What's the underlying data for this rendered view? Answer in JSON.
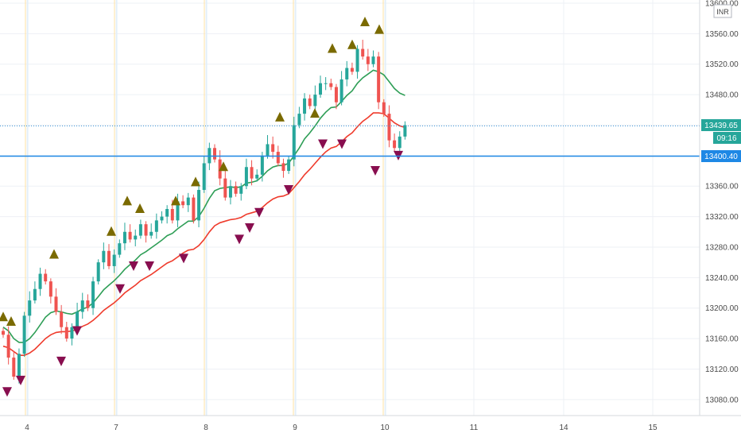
{
  "instrument": {
    "currency": "INR"
  },
  "colors": {
    "up": "#26a69a",
    "down": "#ef5350",
    "ema_fast": "#2e9e56",
    "ema_slow": "#ef3b2c",
    "triangle_up": "#7a6a00",
    "triangle_down": "#880e4f",
    "price_line": "#3c97d9",
    "h_line": "#1e88e5"
  },
  "chart_data": {
    "type": "candlestick",
    "y_axis": {
      "ylim": [
        13060,
        13600
      ],
      "ticks": [
        "13080.00",
        "13120.00",
        "13160.00",
        "13200.00",
        "13240.00",
        "13280.00",
        "13320.00",
        "13360.00",
        "13400.00",
        "13440.00",
        "13480.00",
        "13520.00",
        "13560.00",
        "13600.00"
      ]
    },
    "x_axis": {
      "ticks": [
        "4",
        "7",
        "8",
        "9",
        "10",
        "11",
        "14",
        "15"
      ]
    },
    "price_labels": {
      "last": "13439.65",
      "countdown": "09:16",
      "level": "13400.40"
    },
    "grid": true,
    "series": [
      {
        "kind": "candles",
        "o": [
          13170,
          13165,
          13135,
          13110,
          13140,
          13190,
          13210,
          13225,
          13245,
          13235,
          13215,
          13195,
          13175,
          13160,
          13175,
          13195,
          13210,
          13200,
          13235,
          13260,
          13275,
          13255,
          13270,
          13285,
          13300,
          13290,
          13295,
          13310,
          13295,
          13300,
          13315,
          13320,
          13330,
          13315,
          13340,
          13335,
          13345,
          13315,
          13355,
          13390,
          13410,
          13395,
          13370,
          13345,
          13360,
          13350,
          13360,
          13385,
          13370,
          13375,
          13400,
          13415,
          13405,
          13390,
          13380,
          13395,
          13440,
          13455,
          13475,
          13465,
          13480,
          13495,
          13495,
          13490,
          13470,
          13500,
          13515,
          13510,
          13540,
          13530,
          13520,
          13530,
          13470,
          13455,
          13420,
          13410,
          13425
        ]
      },
      {
        "kind": "candles",
        "c": [
          13165,
          13135,
          13110,
          13140,
          13190,
          13210,
          13225,
          13245,
          13235,
          13215,
          13195,
          13175,
          13160,
          13175,
          13195,
          13210,
          13200,
          13235,
          13260,
          13275,
          13255,
          13270,
          13285,
          13300,
          13290,
          13295,
          13310,
          13295,
          13300,
          13315,
          13320,
          13330,
          13315,
          13340,
          13335,
          13345,
          13315,
          13355,
          13390,
          13410,
          13395,
          13370,
          13345,
          13360,
          13350,
          13360,
          13385,
          13370,
          13375,
          13400,
          13415,
          13405,
          13390,
          13380,
          13395,
          13440,
          13455,
          13475,
          13465,
          13480,
          13495,
          13495,
          13490,
          13470,
          13500,
          13515,
          13510,
          13540,
          13530,
          13520,
          13530,
          13470,
          13455,
          13420,
          13410,
          13425,
          13440
        ]
      },
      {
        "kind": "ema_fast",
        "values": [
          13175,
          13170,
          13160,
          13155,
          13155,
          13160,
          13168,
          13178,
          13188,
          13194,
          13196,
          13195,
          13193,
          13192,
          13195,
          13199,
          13201,
          13207,
          13215,
          13224,
          13230,
          13236,
          13243,
          13251,
          13257,
          13263,
          13270,
          13274,
          13279,
          13284,
          13289,
          13295,
          13298,
          13304,
          13309,
          13314,
          13314,
          13320,
          13331,
          13344,
          13354,
          13357,
          13358,
          13359,
          13358,
          13359,
          13364,
          13365,
          13367,
          13373,
          13380,
          13385,
          13387,
          13387,
          13390,
          13400,
          13410,
          13422,
          13430,
          13439,
          13449,
          13457,
          13463,
          13464,
          13471,
          13479,
          13485,
          13495,
          13502,
          13507,
          13512,
          13510,
          13506,
          13497,
          13488,
          13482,
          13479
        ]
      },
      {
        "kind": "ema_slow",
        "values": [
          13150,
          13148,
          13143,
          13138,
          13138,
          13141,
          13146,
          13153,
          13160,
          13165,
          13168,
          13169,
          13169,
          13170,
          13172,
          13176,
          13179,
          13184,
          13190,
          13197,
          13202,
          13207,
          13213,
          13220,
          13225,
          13230,
          13236,
          13240,
          13244,
          13249,
          13254,
          13259,
          13262,
          13267,
          13272,
          13276,
          13277,
          13282,
          13290,
          13300,
          13308,
          13312,
          13314,
          13316,
          13317,
          13319,
          13323,
          13325,
          13327,
          13332,
          13338,
          13343,
          13346,
          13347,
          13350,
          13358,
          13366,
          13375,
          13382,
          13390,
          13398,
          13405,
          13410,
          13412,
          13418,
          13425,
          13430,
          13438,
          13445,
          13450,
          13456,
          13456,
          13455,
          13449,
          13443,
          13439,
          13437
        ]
      },
      {
        "kind": "triangles_up",
        "values": [
          13188,
          13182,
          13270,
          13340,
          13300,
          13330,
          13340,
          13365,
          13385,
          13450,
          13455,
          13540,
          13545,
          13575,
          13565
        ]
      },
      {
        "kind": "triangles_down",
        "values": [
          13090,
          13105,
          13170,
          13130,
          13225,
          13255,
          13255,
          13265,
          13290,
          13305,
          13325,
          13355,
          13415,
          13415,
          13380,
          13400
        ]
      }
    ]
  }
}
